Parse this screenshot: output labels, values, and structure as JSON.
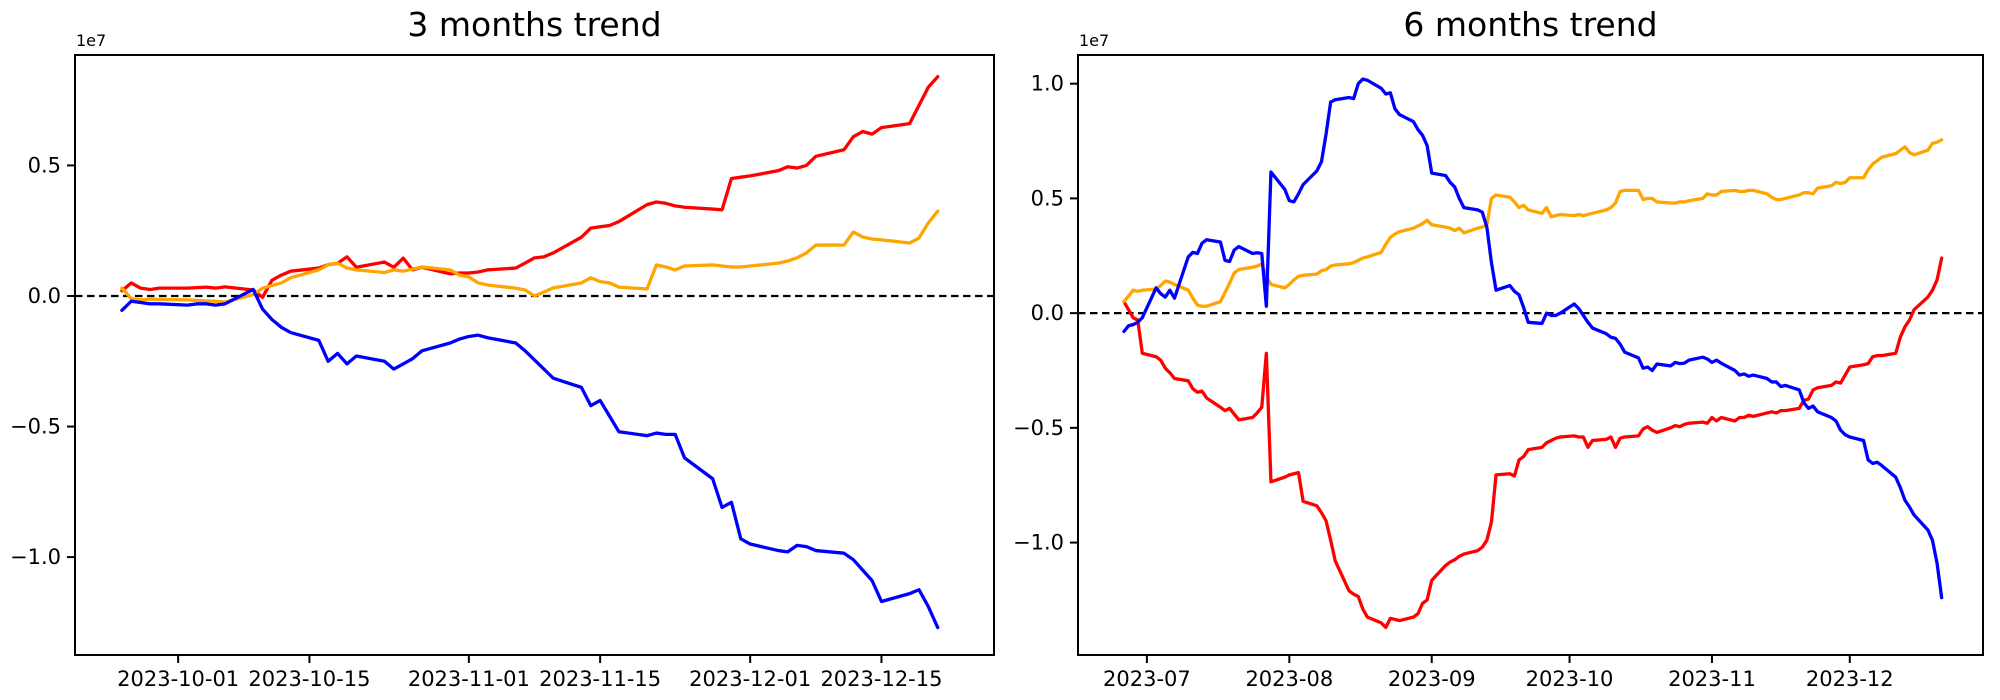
{
  "figure": {
    "background": "#ffffff",
    "text_color": "#000000"
  },
  "chart_data": [
    {
      "type": "line",
      "title": "3 months trend",
      "y_offset_label": "1e7",
      "y_unit_multiplier": 10000000,
      "grid": false,
      "legend": null,
      "zero_line": {
        "show": true,
        "color": "#000000",
        "style": "dashed"
      },
      "xlim": [
        "2023-09-20",
        "2023-12-27"
      ],
      "ylim": [
        -1.375,
        0.923
      ],
      "x_ticks": [
        {
          "date": "2023-10-01",
          "label": "2023-10-01"
        },
        {
          "date": "2023-10-15",
          "label": "2023-10-15"
        },
        {
          "date": "2023-11-01",
          "label": "2023-11-01"
        },
        {
          "date": "2023-11-15",
          "label": "2023-11-15"
        },
        {
          "date": "2023-12-01",
          "label": "2023-12-01"
        },
        {
          "date": "2023-12-15",
          "label": "2023-12-15"
        }
      ],
      "y_ticks": [
        {
          "value": 0.5,
          "label": "0.5"
        },
        {
          "value": 0.0,
          "label": "0.0"
        },
        {
          "value": -0.5,
          "label": "−0.5"
        },
        {
          "value": -1.0,
          "label": "−1.0"
        }
      ],
      "x": [
        "2023-09-25",
        "2023-09-26",
        "2023-09-27",
        "2023-09-28",
        "2023-09-29",
        "2023-10-02",
        "2023-10-03",
        "2023-10-04",
        "2023-10-05",
        "2023-10-06",
        "2023-10-09",
        "2023-10-10",
        "2023-10-11",
        "2023-10-12",
        "2023-10-13",
        "2023-10-16",
        "2023-10-17",
        "2023-10-18",
        "2023-10-19",
        "2023-10-20",
        "2023-10-23",
        "2023-10-24",
        "2023-10-25",
        "2023-10-26",
        "2023-10-27",
        "2023-10-30",
        "2023-10-31",
        "2023-11-01",
        "2023-11-02",
        "2023-11-03",
        "2023-11-06",
        "2023-11-07",
        "2023-11-08",
        "2023-11-09",
        "2023-11-10",
        "2023-11-13",
        "2023-11-14",
        "2023-11-15",
        "2023-11-16",
        "2023-11-17",
        "2023-11-20",
        "2023-11-21",
        "2023-11-22",
        "2023-11-23",
        "2023-11-24",
        "2023-11-27",
        "2023-11-28",
        "2023-11-29",
        "2023-11-30",
        "2023-12-01",
        "2023-12-04",
        "2023-12-05",
        "2023-12-06",
        "2023-12-07",
        "2023-12-08",
        "2023-12-11",
        "2023-12-12",
        "2023-12-13",
        "2023-12-14",
        "2023-12-15",
        "2023-12-18",
        "2023-12-19",
        "2023-12-20",
        "2023-12-21"
      ],
      "series": [
        {
          "name": "red",
          "color": "#ff0000",
          "values": [
            0.02,
            0.05,
            0.03,
            0.025,
            0.03,
            0.03,
            0.032,
            0.034,
            0.03,
            0.035,
            0.023,
            -0.005,
            0.06,
            0.08,
            0.095,
            0.107,
            0.12,
            0.125,
            0.15,
            0.11,
            0.13,
            0.11,
            0.145,
            0.1,
            0.11,
            0.085,
            0.088,
            0.088,
            0.092,
            0.1,
            0.107,
            0.126,
            0.146,
            0.15,
            0.165,
            0.225,
            0.26,
            0.265,
            0.27,
            0.285,
            0.35,
            0.36,
            0.355,
            0.345,
            0.34,
            0.333,
            0.33,
            0.45,
            0.455,
            0.46,
            0.48,
            0.495,
            0.49,
            0.5,
            0.535,
            0.56,
            0.61,
            0.63,
            0.62,
            0.645,
            0.66,
            0.73,
            0.8,
            0.84
          ]
        },
        {
          "name": "orange",
          "color": "#ffa500",
          "values": [
            0.03,
            -0.01,
            -0.015,
            -0.012,
            -0.013,
            -0.015,
            -0.017,
            -0.019,
            -0.02,
            -0.023,
            0.005,
            0.03,
            0.04,
            0.05,
            0.07,
            0.1,
            0.12,
            0.126,
            0.107,
            0.1,
            0.09,
            0.1,
            0.095,
            0.103,
            0.111,
            0.1,
            0.08,
            0.073,
            0.05,
            0.042,
            0.03,
            0.023,
            0.0,
            0.015,
            0.031,
            0.05,
            0.07,
            0.055,
            0.05,
            0.034,
            0.027,
            0.119,
            0.111,
            0.1,
            0.115,
            0.119,
            0.115,
            0.111,
            0.111,
            0.115,
            0.126,
            0.134,
            0.146,
            0.165,
            0.195,
            0.195,
            0.245,
            0.226,
            0.218,
            0.215,
            0.203,
            0.222,
            0.28,
            0.325
          ]
        },
        {
          "name": "blue",
          "color": "#0000ff",
          "values": [
            -0.055,
            -0.02,
            -0.025,
            -0.03,
            -0.03,
            -0.035,
            -0.03,
            -0.03,
            -0.035,
            -0.03,
            0.025,
            -0.05,
            -0.09,
            -0.12,
            -0.14,
            -0.17,
            -0.25,
            -0.22,
            -0.26,
            -0.23,
            -0.25,
            -0.28,
            -0.26,
            -0.24,
            -0.21,
            -0.18,
            -0.165,
            -0.155,
            -0.15,
            -0.16,
            -0.18,
            -0.21,
            -0.245,
            -0.28,
            -0.315,
            -0.35,
            -0.42,
            -0.4,
            -0.46,
            -0.52,
            -0.535,
            -0.525,
            -0.53,
            -0.53,
            -0.62,
            -0.7,
            -0.81,
            -0.79,
            -0.93,
            -0.95,
            -0.975,
            -0.98,
            -0.955,
            -0.96,
            -0.975,
            -0.985,
            -1.01,
            -1.05,
            -1.09,
            -1.17,
            -1.14,
            -1.125,
            -1.19,
            -1.27
          ]
        }
      ]
    },
    {
      "type": "line",
      "title": "6 months trend",
      "y_offset_label": "1e7",
      "y_unit_multiplier": 10000000,
      "grid": false,
      "legend": null,
      "zero_line": {
        "show": true,
        "color": "#000000",
        "style": "dashed"
      },
      "xlim": [
        "2023-06-16",
        "2023-12-30"
      ],
      "ylim": [
        -1.49,
        1.125
      ],
      "x_ticks": [
        {
          "date": "2023-07-01",
          "label": "2023-07"
        },
        {
          "date": "2023-08-01",
          "label": "2023-08"
        },
        {
          "date": "2023-09-01",
          "label": "2023-09"
        },
        {
          "date": "2023-10-01",
          "label": "2023-10"
        },
        {
          "date": "2023-11-01",
          "label": "2023-11"
        },
        {
          "date": "2023-12-01",
          "label": "2023-12"
        }
      ],
      "y_ticks": [
        {
          "value": 1.0,
          "label": "1.0"
        },
        {
          "value": 0.5,
          "label": "0.5"
        },
        {
          "value": 0.0,
          "label": "0.0"
        },
        {
          "value": -0.5,
          "label": "−0.5"
        },
        {
          "value": -1.0,
          "label": "−1.0"
        }
      ],
      "x": [
        "2023-06-26",
        "2023-06-27",
        "2023-06-28",
        "2023-06-29",
        "2023-06-30",
        "2023-07-03",
        "2023-07-04",
        "2023-07-05",
        "2023-07-06",
        "2023-07-07",
        "2023-07-10",
        "2023-07-11",
        "2023-07-12",
        "2023-07-13",
        "2023-07-14",
        "2023-07-17",
        "2023-07-18",
        "2023-07-19",
        "2023-07-20",
        "2023-07-21",
        "2023-07-24",
        "2023-07-25",
        "2023-07-26",
        "2023-07-27",
        "2023-07-28",
        "2023-07-31",
        "2023-08-01",
        "2023-08-02",
        "2023-08-03",
        "2023-08-04",
        "2023-08-07",
        "2023-08-08",
        "2023-08-09",
        "2023-08-10",
        "2023-08-11",
        "2023-08-14",
        "2023-08-15",
        "2023-08-16",
        "2023-08-17",
        "2023-08-18",
        "2023-08-21",
        "2023-08-22",
        "2023-08-23",
        "2023-08-24",
        "2023-08-25",
        "2023-08-28",
        "2023-08-29",
        "2023-08-30",
        "2023-08-31",
        "2023-09-01",
        "2023-09-04",
        "2023-09-05",
        "2023-09-06",
        "2023-09-07",
        "2023-09-08",
        "2023-09-11",
        "2023-09-12",
        "2023-09-13",
        "2023-09-14",
        "2023-09-15",
        "2023-09-18",
        "2023-09-19",
        "2023-09-20",
        "2023-09-21",
        "2023-09-22",
        "2023-09-25",
        "2023-09-26",
        "2023-09-27",
        "2023-09-28",
        "2023-09-29",
        "2023-10-02",
        "2023-10-03",
        "2023-10-04",
        "2023-10-05",
        "2023-10-06",
        "2023-10-09",
        "2023-10-10",
        "2023-10-11",
        "2023-10-12",
        "2023-10-13",
        "2023-10-16",
        "2023-10-17",
        "2023-10-18",
        "2023-10-19",
        "2023-10-20",
        "2023-10-23",
        "2023-10-24",
        "2023-10-25",
        "2023-10-26",
        "2023-10-27",
        "2023-10-30",
        "2023-10-31",
        "2023-11-01",
        "2023-11-02",
        "2023-11-03",
        "2023-11-06",
        "2023-11-07",
        "2023-11-08",
        "2023-11-09",
        "2023-11-10",
        "2023-11-13",
        "2023-11-14",
        "2023-11-15",
        "2023-11-16",
        "2023-11-17",
        "2023-11-20",
        "2023-11-21",
        "2023-11-22",
        "2023-11-23",
        "2023-11-24",
        "2023-11-27",
        "2023-11-28",
        "2023-11-29",
        "2023-11-30",
        "2023-12-01",
        "2023-12-04",
        "2023-12-05",
        "2023-12-06",
        "2023-12-07",
        "2023-12-08",
        "2023-12-11",
        "2023-12-12",
        "2023-12-13",
        "2023-12-14",
        "2023-12-15",
        "2023-12-18",
        "2023-12-19",
        "2023-12-20",
        "2023-12-21"
      ],
      "series": [
        {
          "name": "red",
          "color": "#ff0000",
          "values": [
            0.05,
            0.015,
            -0.02,
            -0.03,
            -0.175,
            -0.19,
            -0.205,
            -0.24,
            -0.26,
            -0.285,
            -0.295,
            -0.33,
            -0.345,
            -0.34,
            -0.37,
            -0.41,
            -0.425,
            -0.415,
            -0.44,
            -0.465,
            -0.455,
            -0.435,
            -0.41,
            -0.175,
            -0.735,
            -0.715,
            -0.705,
            -0.7,
            -0.695,
            -0.82,
            -0.84,
            -0.87,
            -0.905,
            -0.99,
            -1.08,
            -1.21,
            -1.225,
            -1.235,
            -1.29,
            -1.325,
            -1.35,
            -1.37,
            -1.33,
            -1.335,
            -1.34,
            -1.325,
            -1.31,
            -1.265,
            -1.25,
            -1.165,
            -1.1,
            -1.085,
            -1.075,
            -1.06,
            -1.05,
            -1.035,
            -1.02,
            -0.99,
            -0.91,
            -0.705,
            -0.7,
            -0.71,
            -0.64,
            -0.625,
            -0.595,
            -0.585,
            -0.565,
            -0.555,
            -0.545,
            -0.54,
            -0.535,
            -0.54,
            -0.54,
            -0.585,
            -0.555,
            -0.55,
            -0.54,
            -0.585,
            -0.545,
            -0.54,
            -0.535,
            -0.505,
            -0.495,
            -0.51,
            -0.52,
            -0.5,
            -0.49,
            -0.495,
            -0.485,
            -0.48,
            -0.475,
            -0.48,
            -0.455,
            -0.47,
            -0.455,
            -0.47,
            -0.455,
            -0.455,
            -0.445,
            -0.45,
            -0.435,
            -0.43,
            -0.435,
            -0.425,
            -0.425,
            -0.415,
            -0.38,
            -0.375,
            -0.335,
            -0.325,
            -0.315,
            -0.3,
            -0.305,
            -0.27,
            -0.235,
            -0.225,
            -0.22,
            -0.19,
            -0.185,
            -0.185,
            -0.175,
            -0.105,
            -0.06,
            -0.03,
            0.015,
            0.07,
            0.1,
            0.145,
            0.24
          ]
        },
        {
          "name": "orange",
          "color": "#ffa500",
          "values": [
            0.05,
            0.075,
            0.1,
            0.095,
            0.1,
            0.105,
            0.12,
            0.14,
            0.135,
            0.125,
            0.1,
            0.065,
            0.035,
            0.03,
            0.03,
            0.05,
            0.09,
            0.13,
            0.175,
            0.19,
            0.2,
            0.205,
            0.215,
            0.16,
            0.125,
            0.11,
            0.125,
            0.145,
            0.16,
            0.165,
            0.17,
            0.185,
            0.19,
            0.205,
            0.21,
            0.215,
            0.22,
            0.23,
            0.24,
            0.245,
            0.265,
            0.3,
            0.33,
            0.345,
            0.355,
            0.37,
            0.38,
            0.39,
            0.405,
            0.385,
            0.375,
            0.37,
            0.36,
            0.37,
            0.35,
            0.37,
            0.375,
            0.385,
            0.5,
            0.515,
            0.505,
            0.485,
            0.46,
            0.47,
            0.45,
            0.435,
            0.46,
            0.42,
            0.425,
            0.43,
            0.425,
            0.43,
            0.425,
            0.43,
            0.435,
            0.45,
            0.46,
            0.48,
            0.53,
            0.535,
            0.535,
            0.495,
            0.5,
            0.5,
            0.485,
            0.48,
            0.48,
            0.485,
            0.485,
            0.49,
            0.5,
            0.52,
            0.515,
            0.515,
            0.53,
            0.535,
            0.53,
            0.53,
            0.535,
            0.535,
            0.52,
            0.505,
            0.495,
            0.495,
            0.5,
            0.515,
            0.525,
            0.525,
            0.52,
            0.545,
            0.555,
            0.57,
            0.565,
            0.57,
            0.59,
            0.59,
            0.625,
            0.65,
            0.665,
            0.68,
            0.695,
            0.71,
            0.725,
            0.7,
            0.69,
            0.71,
            0.74,
            0.745,
            0.755
          ]
        },
        {
          "name": "blue",
          "color": "#0000ff",
          "values": [
            -0.08,
            -0.055,
            -0.05,
            -0.04,
            -0.02,
            0.11,
            0.085,
            0.07,
            0.1,
            0.065,
            0.245,
            0.265,
            0.26,
            0.305,
            0.32,
            0.31,
            0.23,
            0.225,
            0.275,
            0.29,
            0.26,
            0.263,
            0.26,
            0.03,
            0.615,
            0.54,
            0.49,
            0.485,
            0.52,
            0.56,
            0.62,
            0.66,
            0.78,
            0.92,
            0.93,
            0.94,
            0.935,
            1.0,
            1.02,
            1.015,
            0.98,
            0.955,
            0.96,
            0.89,
            0.865,
            0.835,
            0.8,
            0.775,
            0.73,
            0.61,
            0.6,
            0.57,
            0.55,
            0.5,
            0.46,
            0.45,
            0.44,
            0.375,
            0.22,
            0.1,
            0.12,
            0.095,
            0.08,
            0.025,
            -0.04,
            -0.045,
            0.0,
            -0.01,
            -0.01,
            0.0,
            0.04,
            0.02,
            -0.01,
            -0.04,
            -0.065,
            -0.09,
            -0.105,
            -0.11,
            -0.135,
            -0.17,
            -0.195,
            -0.24,
            -0.235,
            -0.25,
            -0.222,
            -0.23,
            -0.215,
            -0.22,
            -0.218,
            -0.205,
            -0.192,
            -0.2,
            -0.215,
            -0.205,
            -0.218,
            -0.25,
            -0.27,
            -0.265,
            -0.275,
            -0.27,
            -0.285,
            -0.3,
            -0.3,
            -0.32,
            -0.315,
            -0.335,
            -0.39,
            -0.415,
            -0.405,
            -0.43,
            -0.455,
            -0.47,
            -0.51,
            -0.53,
            -0.54,
            -0.555,
            -0.64,
            -0.655,
            -0.65,
            -0.665,
            -0.715,
            -0.76,
            -0.815,
            -0.845,
            -0.88,
            -0.945,
            -0.99,
            -1.09,
            -1.24
          ]
        }
      ]
    }
  ]
}
